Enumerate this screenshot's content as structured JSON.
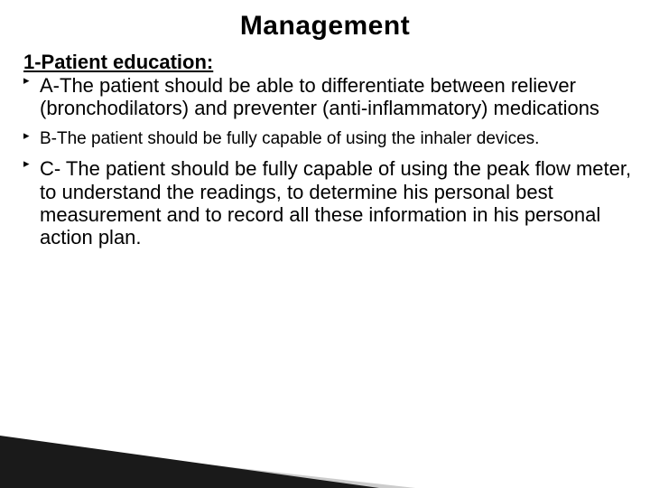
{
  "slide": {
    "title": "Management",
    "title_fontsize": 30,
    "title_color": "#000000",
    "section_header": "1-Patient education:",
    "section_header_fontsize": 22,
    "bullets": [
      {
        "text": "A-The patient should be able to differentiate between reliever (bronchodilators) and preventer (anti-inflammatory) medications",
        "fontsize": 22
      },
      {
        "text": "B-The patient should be fully capable of using the inhaler devices.",
        "fontsize": 19
      },
      {
        "text": "C- The patient should be fully capable of using the peak flow meter, to understand the readings, to determine his personal best measurement and to record all these information in his personal action plan.",
        "fontsize": 22
      }
    ],
    "background_color": "#ffffff",
    "accent_dark": "#1a1a1a",
    "accent_light": "#cccccc"
  }
}
